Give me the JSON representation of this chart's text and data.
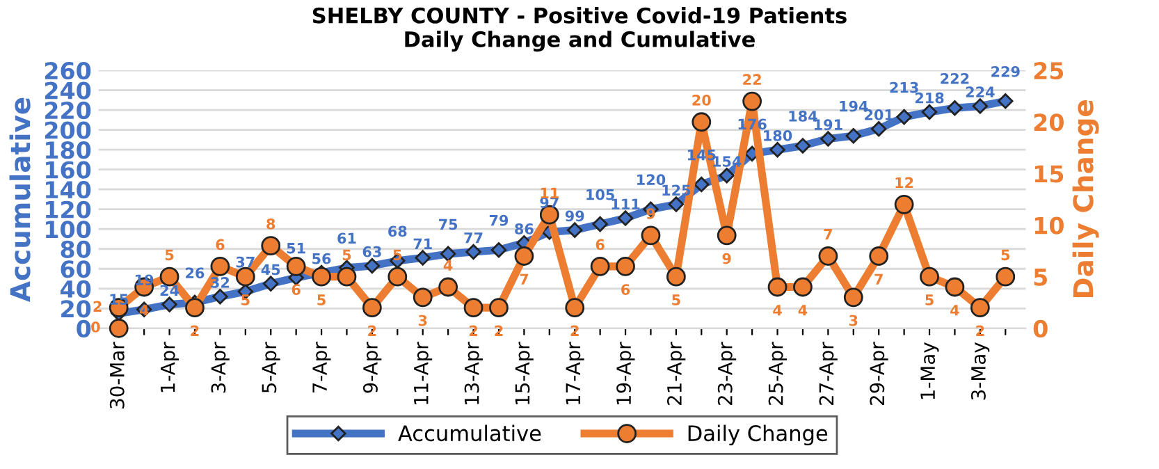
{
  "chart_data": {
    "type": "line",
    "title": "SHELBY COUNTY - Positive Covid-19 Patients\nDaily Change and Cumulative",
    "ylabel": "Accumulative",
    "y2label": "Daily Change",
    "categories": [
      "30-Mar",
      null,
      "1-Apr",
      null,
      "3-Apr",
      null,
      "5-Apr",
      null,
      "7-Apr",
      null,
      "9-Apr",
      null,
      "11-Apr",
      null,
      "13-Apr",
      null,
      "15-Apr",
      null,
      "17-Apr",
      null,
      "19-Apr",
      null,
      "21-Apr",
      null,
      "23-Apr",
      null,
      "25-Apr",
      null,
      "27-Apr",
      null,
      "29-Apr",
      null,
      "1-May",
      null,
      "3-May",
      null
    ],
    "series": [
      {
        "name": "Accumulative",
        "color": "#4472c4",
        "marker": "diamond",
        "values": [
          15,
          19,
          24,
          26,
          32,
          37,
          45,
          51,
          56,
          61,
          63,
          68,
          71,
          75,
          77,
          79,
          86,
          97,
          99,
          105,
          111,
          120,
          125,
          145,
          154,
          176,
          180,
          184,
          191,
          194,
          201,
          213,
          218,
          222,
          224,
          229
        ]
      },
      {
        "name": "Daily Change",
        "color": "#ed7d31",
        "marker": "circle",
        "axis": "y2",
        "values": [
          2,
          4,
          5,
          2,
          6,
          5,
          8,
          6,
          5,
          5,
          2,
          5,
          3,
          4,
          2,
          2,
          7,
          11,
          2,
          6,
          6,
          9,
          5,
          20,
          9,
          22,
          4,
          4,
          7,
          3,
          7,
          12,
          5,
          4,
          2,
          5
        ]
      },
      {
        "type": "scatter",
        "color": "#ed7d31",
        "marker": "circle",
        "axis": "y2",
        "values": [
          0,
          null,
          null,
          null,
          null,
          null,
          null,
          null,
          null,
          null,
          null,
          null,
          null,
          null,
          null,
          null,
          null,
          null,
          null,
          null,
          null,
          null,
          null,
          null,
          null,
          null,
          null,
          null,
          null,
          null,
          null,
          null,
          null,
          null,
          null,
          null
        ]
      }
    ],
    "ylim": [
      0,
      260
    ],
    "yticks": [
      0,
      20,
      40,
      60,
      80,
      100,
      120,
      140,
      160,
      180,
      200,
      220,
      240,
      260
    ],
    "y2lim": [
      0,
      25
    ],
    "y2ticks": [
      0,
      5,
      10,
      15,
      20,
      25
    ],
    "grid": "y",
    "legend": "bottom",
    "data_labels": true
  }
}
